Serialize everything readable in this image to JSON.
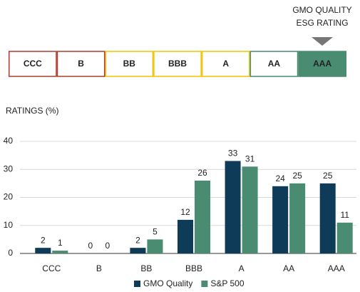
{
  "rating_scale": {
    "marker": [
      "GMO QUALITY",
      "ESG RATING"
    ],
    "labels": [
      "CCC",
      "B",
      "BB",
      "BBB",
      "A",
      "AA",
      "AAA"
    ]
  },
  "chart_data": {
    "type": "bar",
    "title": "RATINGS (%)",
    "categories": [
      "CCC",
      "B",
      "BB",
      "BBB",
      "A",
      "AA",
      "AAA"
    ],
    "series": [
      {
        "name": "GMO Quality",
        "color": "#0d3b58",
        "values": [
          2,
          0,
          2,
          12,
          33,
          24,
          25
        ]
      },
      {
        "name": "S&P 500",
        "color": "#4a8c72",
        "values": [
          1,
          0,
          5,
          26,
          31,
          25,
          11
        ]
      }
    ],
    "ylim": [
      0,
      40
    ],
    "yticks": [
      0,
      10,
      20,
      30,
      40
    ],
    "grid": true,
    "legend": "bottom"
  }
}
